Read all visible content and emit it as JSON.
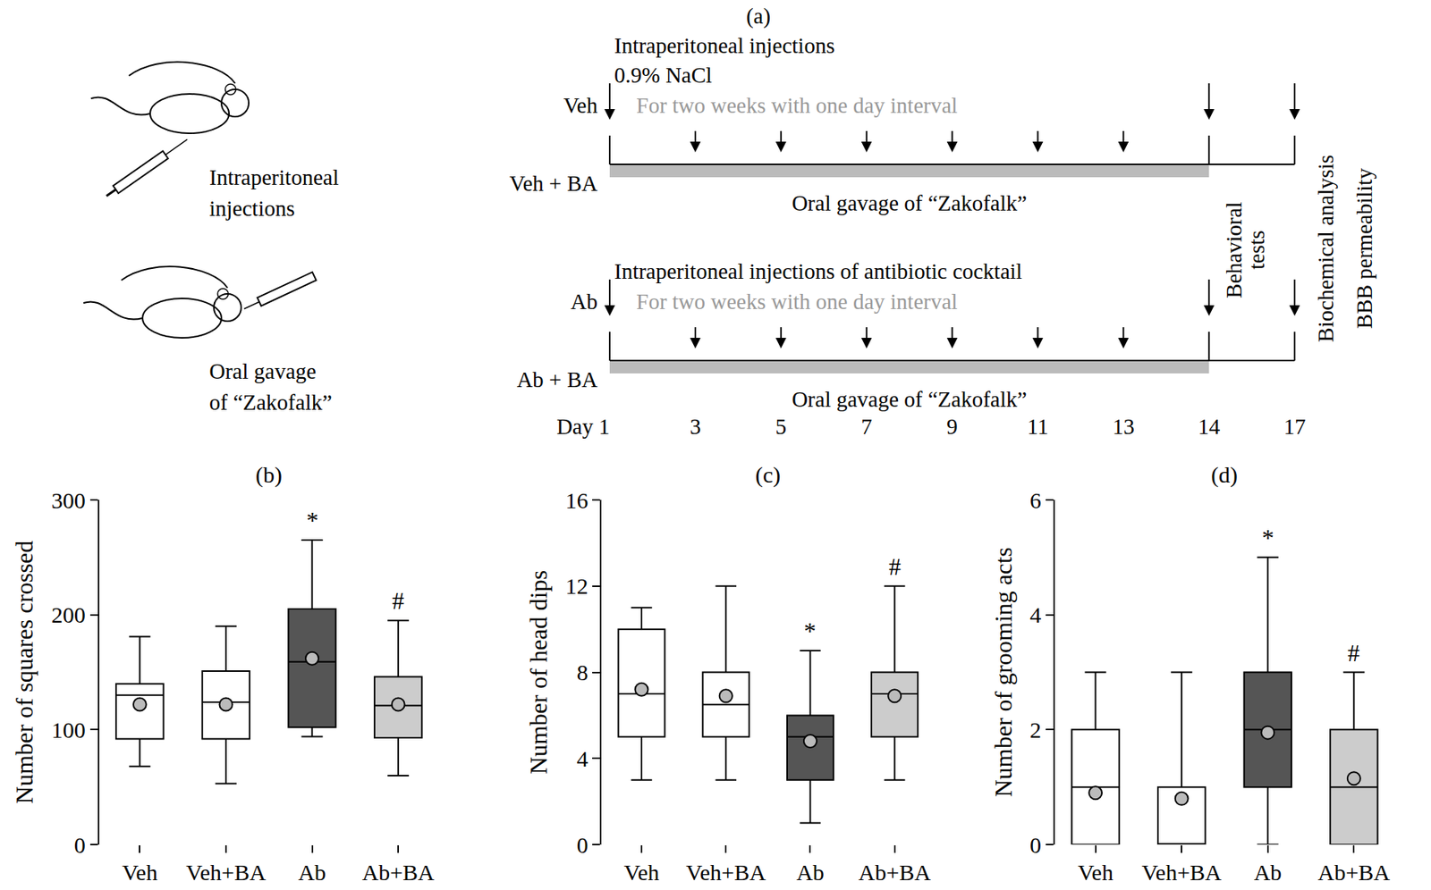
{
  "diagram": {
    "label": "(a)",
    "methods": [
      {
        "icon": "injection",
        "label": [
          "Intraperitoneal",
          "injections"
        ]
      },
      {
        "icon": "gavage",
        "label": [
          "Oral gavage",
          "of “Zakofalk”"
        ]
      }
    ],
    "timelines": [
      {
        "heading": [
          "Intraperitoneal injections",
          "0.9% NaCl"
        ],
        "group_top": "Veh",
        "schedule": "For two weeks with one day interval",
        "group_bottom": "Veh + BA",
        "bar_label": "Oral gavage of “Zakofalk”",
        "bar_span": [
          1,
          14
        ]
      },
      {
        "heading": [
          "Intraperitoneal injections of antibiotic cocktail"
        ],
        "group_top": "Ab",
        "schedule": "For two weeks with one day interval",
        "group_bottom": "Ab + BA",
        "bar_label": "Oral gavage of “Zakofalk”",
        "bar_span": [
          1,
          14
        ]
      }
    ],
    "days": [
      {
        "value": 1,
        "label": "Day 1"
      },
      3,
      5,
      7,
      9,
      11,
      13,
      14,
      17
    ],
    "after_day_14": [
      "Behavioral",
      "tests"
    ],
    "after_day_17": [
      "Biochemical analysis",
      "BBB permeability"
    ]
  },
  "chart_data": [
    {
      "type": "box",
      "title": "(b)",
      "ylabel": "Number of squares crossed",
      "categories": [
        "Veh",
        "Veh+BA",
        "Ab",
        "Ab+BA"
      ],
      "colors": [
        "#ffffff",
        "#ffffff",
        "#555555",
        "#cccccc"
      ],
      "lowerfence": [
        68,
        53,
        94,
        60
      ],
      "q1": [
        92,
        92,
        102,
        93
      ],
      "median": [
        130,
        124,
        159,
        121
      ],
      "q3": [
        140,
        151,
        205,
        146
      ],
      "upperfence": [
        181,
        190,
        265,
        195
      ],
      "mean": [
        122,
        122,
        162,
        122
      ],
      "marker": "circle",
      "ylim": [
        0,
        300
      ],
      "yticks": [
        0,
        100,
        200,
        300
      ],
      "grid": false,
      "annotations": [
        {
          "category": "Ab",
          "text": "*"
        },
        {
          "category": "Ab+BA",
          "text": "#"
        }
      ]
    },
    {
      "type": "box",
      "title": "(c)",
      "ylabel": "Number of head dips",
      "categories": [
        "Veh",
        "Veh+BA",
        "Ab",
        "Ab+BA"
      ],
      "colors": [
        "#ffffff",
        "#ffffff",
        "#555555",
        "#cccccc"
      ],
      "lowerfence": [
        3,
        3,
        1,
        3
      ],
      "q1": [
        5,
        5,
        3,
        5
      ],
      "median": [
        7,
        6.5,
        5,
        7
      ],
      "q3": [
        10,
        8,
        6,
        8
      ],
      "upperfence": [
        11,
        12,
        9,
        12
      ],
      "mean": [
        7.2,
        6.9,
        4.8,
        6.9
      ],
      "marker": "circle",
      "ylim": [
        0,
        16
      ],
      "yticks": [
        0,
        4,
        8,
        12,
        16
      ],
      "grid": false,
      "annotations": [
        {
          "category": "Ab",
          "text": "*"
        },
        {
          "category": "Ab+BA",
          "text": "#"
        }
      ]
    },
    {
      "type": "box",
      "title": "(d)",
      "ylabel": "Number of grooming acts",
      "categories": [
        "Veh",
        "Veh+BA",
        "Ab",
        "Ab+BA"
      ],
      "colors": [
        "#ffffff",
        "#ffffff",
        "#555555",
        "#cccccc"
      ],
      "lowerfence": [
        0,
        0,
        0,
        0
      ],
      "q1": [
        0,
        0,
        1,
        0
      ],
      "median": [
        1,
        0,
        2,
        1
      ],
      "q3": [
        2,
        1,
        3,
        2
      ],
      "upperfence": [
        3,
        3,
        5,
        3
      ],
      "mean": [
        0.9,
        0.8,
        1.95,
        1.15
      ],
      "marker": "circle",
      "ylim": [
        0,
        6
      ],
      "yticks": [
        0,
        2,
        4,
        6
      ],
      "grid": false,
      "annotations": [
        {
          "category": "Ab",
          "text": "*"
        },
        {
          "category": "Ab+BA",
          "text": "#"
        }
      ]
    }
  ]
}
